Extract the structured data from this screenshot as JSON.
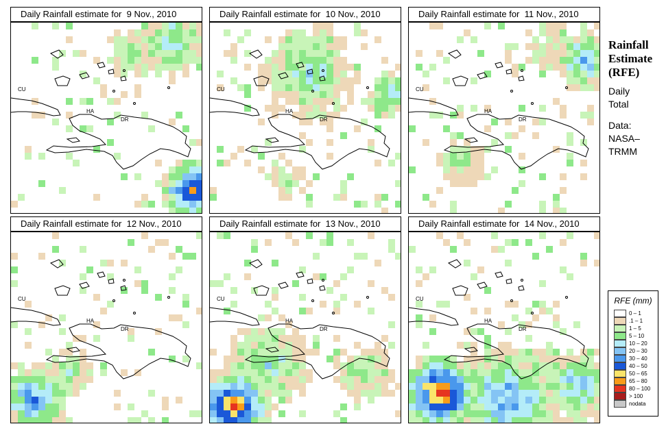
{
  "panels": [
    {
      "title": "Daily Rainfall estimate for  9 Nov., 2010",
      "seed": 11,
      "hotspots": [
        {
          "cx": 26,
          "cy": 24,
          "r": 5,
          "max": 9
        },
        {
          "cx": 23,
          "cy": 2,
          "r": 6,
          "max": 4
        },
        {
          "cx": 17,
          "cy": 4,
          "r": 4,
          "max": 3
        }
      ]
    },
    {
      "title": "Daily Rainfall estimate for  10 Nov., 2010",
      "seed": 23,
      "hotspots": [
        {
          "cx": 14,
          "cy": 7,
          "r": 8,
          "max": 4
        },
        {
          "cx": 26,
          "cy": 10,
          "r": 4,
          "max": 5
        },
        {
          "cx": 11,
          "cy": 23,
          "r": 3,
          "max": 2
        }
      ]
    },
    {
      "title": "Daily Rainfall estimate for  11 Nov., 2010",
      "seed": 37,
      "hotspots": [
        {
          "cx": 25,
          "cy": 5,
          "r": 5,
          "max": 5
        },
        {
          "cx": 7,
          "cy": 20,
          "r": 4,
          "max": 3
        },
        {
          "cx": 20,
          "cy": 3,
          "r": 4,
          "max": 2
        }
      ]
    },
    {
      "title": "Daily Rainfall estimate for  12 Nov., 2010",
      "seed": 41,
      "hotspots": [
        {
          "cx": 3,
          "cy": 24,
          "r": 6,
          "max": 6
        },
        {
          "cx": 8,
          "cy": 20,
          "r": 4,
          "max": 3
        }
      ]
    },
    {
      "title": "Daily Rainfall estimate for  13 Nov., 2010",
      "seed": 53,
      "hotspots": [
        {
          "cx": 3,
          "cy": 25,
          "r": 6,
          "max": 10
        },
        {
          "cx": 8,
          "cy": 19,
          "r": 7,
          "max": 4
        },
        {
          "cx": 22,
          "cy": 20,
          "r": 5,
          "max": 3
        }
      ]
    },
    {
      "title": "Daily Rainfall estimate for  14 Nov., 2010",
      "seed": 67,
      "hotspots": [
        {
          "cx": 4,
          "cy": 23,
          "r": 6,
          "max": 11
        },
        {
          "cx": 14,
          "cy": 24,
          "r": 9,
          "max": 6
        },
        {
          "cx": 24,
          "cy": 22,
          "r": 6,
          "max": 5
        }
      ]
    }
  ],
  "map_labels": {
    "cu": "CU",
    "ha": "HA",
    "dr": "DR"
  },
  "sidebar": {
    "title_lines": [
      "Rainfall",
      "Estimate",
      "(RFE)"
    ],
    "text_lines": [
      "Daily",
      "Total",
      "",
      "Data:",
      "NASA–",
      "TRMM"
    ]
  },
  "legend": {
    "title": "RFE (mm)",
    "items": [
      {
        "label": "0 – 1",
        "color": "#ffffff"
      },
      {
        "label": ".1 – 1",
        "color": "#eed8b8"
      },
      {
        "label": "1 – 5",
        "color": "#c8f4b8"
      },
      {
        "label": "5 – 10",
        "color": "#8ee88a"
      },
      {
        "label": "10 – 20",
        "color": "#b4ecf8"
      },
      {
        "label": "20 – 30",
        "color": "#84c4f4"
      },
      {
        "label": "30 – 40",
        "color": "#4a98ec"
      },
      {
        "label": "40 – 50",
        "color": "#1a58d8"
      },
      {
        "label": "50 – 65",
        "color": "#fae46a"
      },
      {
        "label": "65 – 80",
        "color": "#f89c1a"
      },
      {
        "label": "80 – 100",
        "color": "#e63420"
      },
      {
        "label": "> 100",
        "color": "#a81c1c"
      },
      {
        "label": "nodata",
        "color": "#c8c8c8"
      }
    ]
  }
}
